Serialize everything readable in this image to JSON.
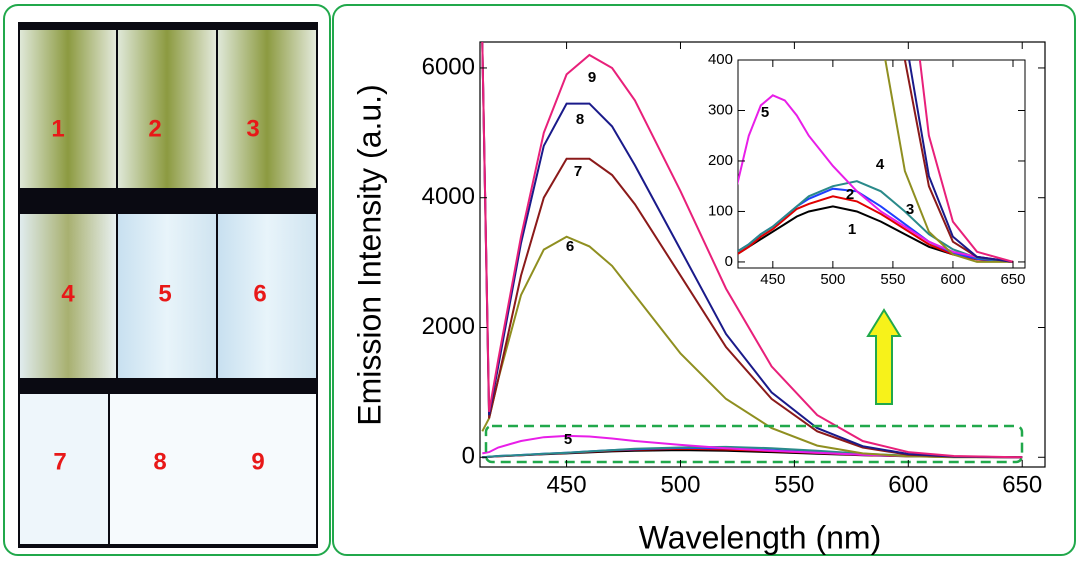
{
  "photo": {
    "labels": [
      "1",
      "2",
      "3",
      "4",
      "5",
      "6",
      "7",
      "8",
      "9"
    ]
  },
  "chart_data": [
    {
      "type": "line",
      "xlabel": "Wavelength (nm)",
      "ylabel": "Emission Intensity (a.u.)",
      "x": [
        413,
        416,
        420,
        430,
        440,
        450,
        460,
        470,
        480,
        500,
        520,
        540,
        560,
        580,
        600,
        620,
        650
      ],
      "series": [
        {
          "name": "1",
          "color": "#000000",
          "values": [
            0,
            5,
            15,
            30,
            45,
            60,
            75,
            90,
            100,
            110,
            100,
            80,
            55,
            30,
            15,
            5,
            0
          ]
        },
        {
          "name": "2",
          "color": "#e00000",
          "values": [
            0,
            5,
            15,
            30,
            50,
            65,
            85,
            105,
            115,
            130,
            120,
            95,
            65,
            35,
            15,
            5,
            0
          ]
        },
        {
          "name": "3",
          "color": "#1f3fff",
          "values": [
            0,
            8,
            20,
            35,
            55,
            70,
            90,
            110,
            125,
            145,
            140,
            110,
            75,
            40,
            18,
            6,
            0
          ]
        },
        {
          "name": "4",
          "color": "#2a8a8a",
          "values": [
            0,
            8,
            20,
            35,
            55,
            70,
            90,
            110,
            130,
            150,
            160,
            140,
            100,
            55,
            25,
            8,
            0
          ]
        },
        {
          "name": "5",
          "color": "#e81ee8",
          "values": [
            60,
            80,
            150,
            250,
            310,
            330,
            320,
            290,
            250,
            190,
            140,
            100,
            70,
            40,
            20,
            10,
            0
          ]
        },
        {
          "name": "6",
          "color": "#8f8f20",
          "values": [
            400,
            600,
            1200,
            2500,
            3200,
            3400,
            3250,
            2950,
            2500,
            1600,
            900,
            450,
            180,
            60,
            15,
            0,
            0
          ]
        },
        {
          "name": "7",
          "color": "#8b1a1a",
          "values": [
            6400,
            600,
            1200,
            2800,
            4000,
            4600,
            4600,
            4350,
            3900,
            2800,
            1700,
            900,
            400,
            150,
            40,
            10,
            0
          ]
        },
        {
          "name": "8",
          "color": "#1a1a8a",
          "values": [
            6400,
            650,
            1400,
            3300,
            4800,
            5450,
            5450,
            5100,
            4500,
            3200,
            1900,
            1000,
            450,
            170,
            50,
            10,
            0
          ]
        },
        {
          "name": "9",
          "color": "#e8207a",
          "values": [
            6400,
            700,
            1500,
            3400,
            5000,
            5900,
            6200,
            6000,
            5500,
            4100,
            2600,
            1400,
            650,
            250,
            80,
            20,
            0
          ]
        }
      ],
      "xlim": [
        412,
        660
      ],
      "ylim": [
        -150,
        6400
      ],
      "xticks": [
        450,
        500,
        550,
        600,
        650
      ],
      "yticks": [
        0,
        2000,
        4000,
        6000
      ]
    },
    {
      "type": "line",
      "xlim": [
        421,
        660
      ],
      "ylim": [
        -12,
        400
      ],
      "xticks": [
        450,
        500,
        550,
        600,
        650
      ],
      "yticks": [
        0,
        100,
        200,
        300,
        400
      ]
    }
  ]
}
